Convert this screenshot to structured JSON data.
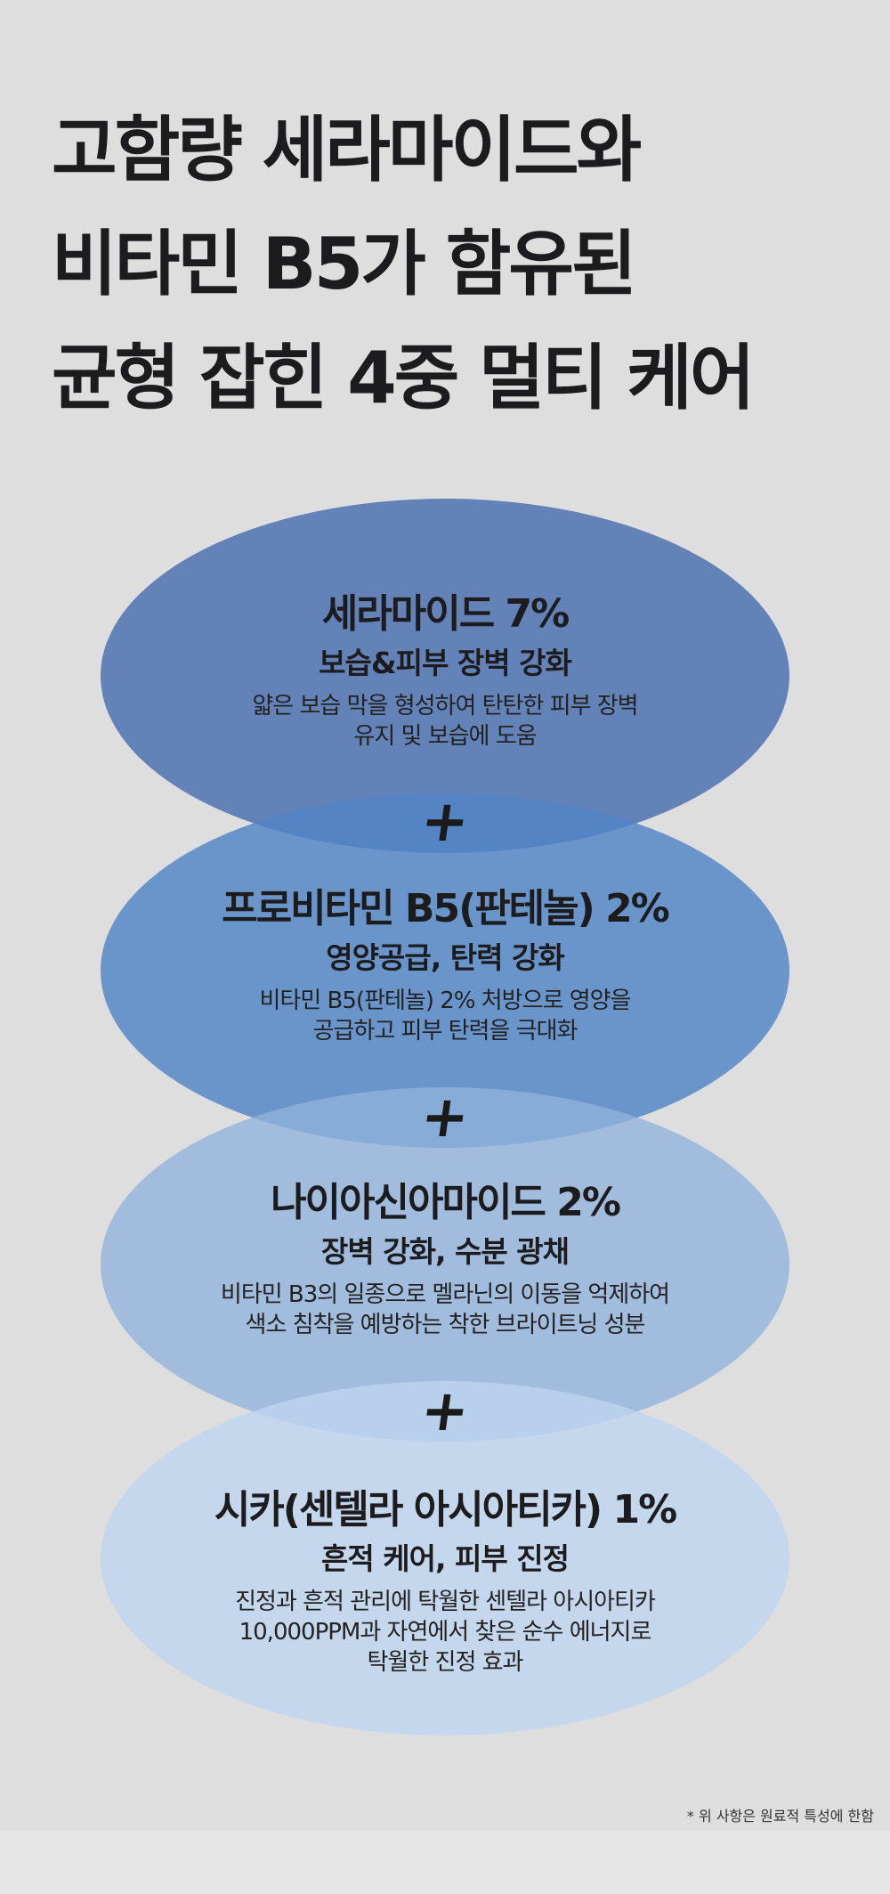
{
  "title_lines": [
    "고함량 세라마이드와",
    "비타민 B5가 함유된",
    "균형 잡힌 4중 멀티 케어"
  ],
  "ingredients": [
    {
      "name": "세라마이드 7%",
      "benefit": "보습&피부 장벽 강화",
      "description": [
        "얇은 보습 막을 형성하여 탄탄한 피부 장벽",
        "유지 및 보습에 도움"
      ],
      "color": "#6281b8"
    },
    {
      "name": "프로비타민 B5(판테놀) 2%",
      "benefit": "영양공급, 탄력 강화",
      "description": [
        "비타민 B5(판테놀) 2% 처방으로 영양을",
        "공급하고 피부 탄력을 극대화"
      ],
      "color": "#6793c9"
    },
    {
      "name": "나이아신아마이드 2%",
      "benefit": "장벽 강화, 수분 광채",
      "description": [
        "비타민 B3의 일종으로 멜라닌의 이동을 억제하여",
        "색소 침착을 예방하는 착한 브라이트닝 성분"
      ],
      "color": "#a2bcdc"
    },
    {
      "name": "시카(센텔라 아시아티카) 1%",
      "benefit": "흔적 케어, 피부 진정",
      "description": [
        "진정과 흔적 관리에 탁월한 센텔라 아시아티카",
        "10,000PPM과 자연에서 찾은 순수 에너지로",
        "탁월한 진정 효과"
      ],
      "color": "#c8daf0"
    }
  ],
  "plus_symbol": "+",
  "footnote": "* 위 사항은 원료적 특성에 한함"
}
